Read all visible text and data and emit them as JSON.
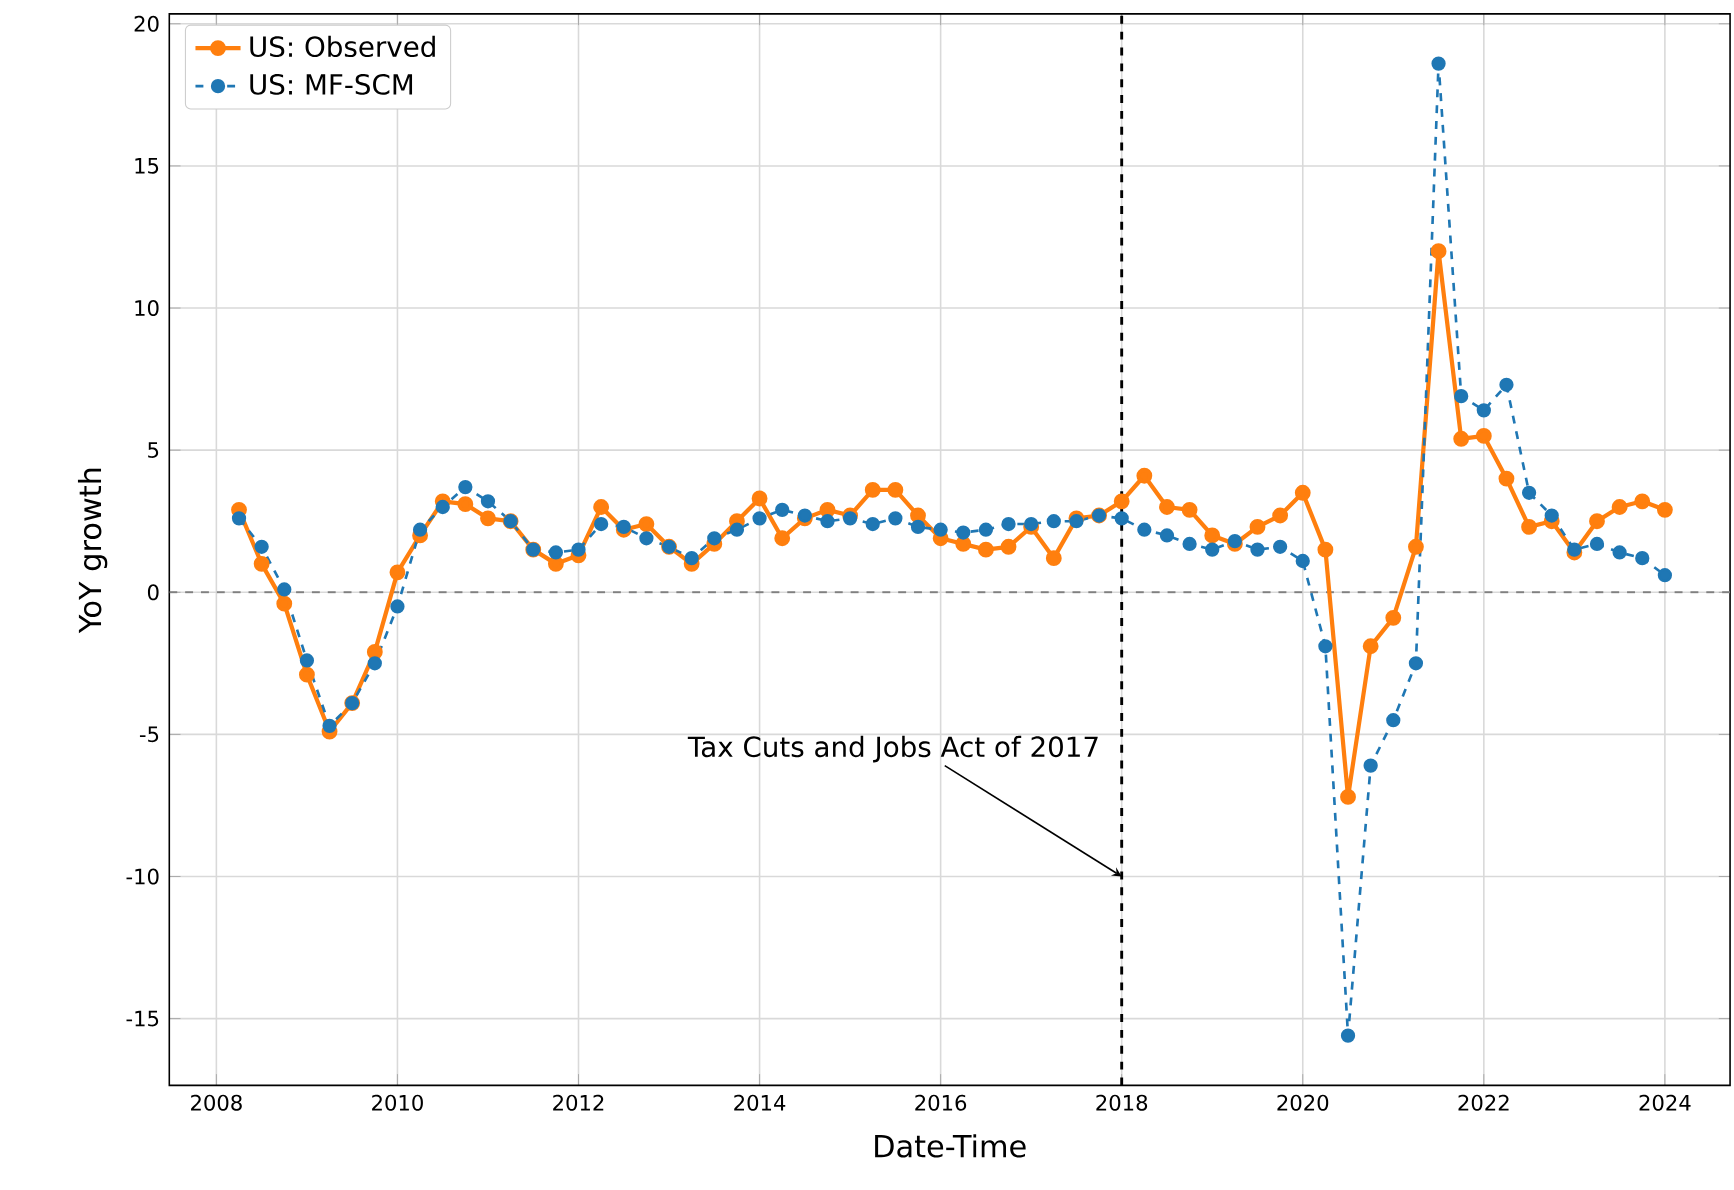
{
  "chart_data": {
    "type": "line",
    "xlabel": "Date-Time",
    "ylabel": "YoY growth",
    "x": [
      2008.25,
      2008.5,
      2008.75,
      2009.0,
      2009.25,
      2009.5,
      2009.75,
      2010.0,
      2010.25,
      2010.5,
      2010.75,
      2011.0,
      2011.25,
      2011.5,
      2011.75,
      2012.0,
      2012.25,
      2012.5,
      2012.75,
      2013.0,
      2013.25,
      2013.5,
      2013.75,
      2014.0,
      2014.25,
      2014.5,
      2014.75,
      2015.0,
      2015.25,
      2015.5,
      2015.75,
      2016.0,
      2016.25,
      2016.5,
      2016.75,
      2017.0,
      2017.25,
      2017.5,
      2017.75,
      2018.0,
      2018.25,
      2018.5,
      2018.75,
      2019.0,
      2019.25,
      2019.5,
      2019.75,
      2020.0,
      2020.25,
      2020.5,
      2020.75,
      2021.0,
      2021.25,
      2021.5,
      2021.75,
      2022.0,
      2022.25,
      2022.5,
      2022.75,
      2023.0,
      2023.25,
      2023.5,
      2023.75,
      2024.0
    ],
    "series": [
      {
        "name": "US: Observed",
        "color": "#ff7f0e",
        "line_style": "solid",
        "values": [
          2.9,
          1.0,
          -0.4,
          -2.9,
          -4.9,
          -3.9,
          -2.1,
          0.7,
          2.0,
          3.2,
          3.1,
          2.6,
          2.5,
          1.5,
          1.0,
          1.3,
          3.0,
          2.2,
          2.4,
          1.6,
          1.0,
          1.7,
          2.5,
          3.3,
          1.9,
          2.6,
          2.9,
          2.7,
          3.6,
          3.6,
          2.7,
          1.9,
          1.7,
          1.5,
          1.6,
          2.3,
          1.2,
          2.6,
          2.7,
          3.2,
          4.1,
          3.0,
          2.9,
          2.0,
          1.7,
          2.3,
          2.7,
          3.5,
          1.5,
          -7.2,
          -1.9,
          -0.9,
          1.6,
          12.0,
          5.4,
          5.5,
          4.0,
          2.3,
          2.5,
          1.4,
          2.5,
          3.0,
          3.2,
          2.9
        ]
      },
      {
        "name": "US: MF-SCM",
        "color": "#1f77b4",
        "line_style": "dashed",
        "values": [
          2.6,
          1.6,
          0.1,
          -2.4,
          -4.7,
          -3.9,
          -2.5,
          -0.5,
          2.2,
          3.0,
          3.7,
          3.2,
          2.5,
          1.5,
          1.4,
          1.5,
          2.4,
          2.3,
          1.9,
          1.6,
          1.2,
          1.9,
          2.2,
          2.6,
          2.9,
          2.7,
          2.5,
          2.6,
          2.4,
          2.6,
          2.3,
          2.2,
          2.1,
          2.2,
          2.4,
          2.4,
          2.5,
          2.5,
          2.7,
          2.6,
          2.2,
          2.0,
          1.7,
          1.5,
          1.8,
          1.5,
          1.6,
          1.1,
          -1.9,
          -15.6,
          -6.1,
          -4.5,
          -2.5,
          18.6,
          6.9,
          6.4,
          7.3,
          3.5,
          2.7,
          1.5,
          1.7,
          1.4,
          1.2,
          0.6
        ]
      }
    ],
    "xlim": [
      2007.48,
      2024.72
    ],
    "ylim": [
      -17.35,
      20.35
    ],
    "xticks": [
      2008,
      2010,
      2012,
      2014,
      2016,
      2018,
      2020,
      2022,
      2024
    ],
    "yticks": [
      -15,
      -10,
      -5,
      0,
      5,
      10,
      15,
      20
    ],
    "ref_lines": [
      {
        "axis": "y",
        "value": 0,
        "color": "#808080",
        "line_style": "dashed"
      },
      {
        "axis": "x",
        "value": 2018,
        "color": "#000000",
        "line_style": "dashed"
      }
    ],
    "annotations": [
      {
        "text": "Tax Cuts and Jobs Act of 2017",
        "x": 2018,
        "y": -10
      }
    ],
    "grid": true,
    "legend": "top left",
    "marker": "circle"
  }
}
